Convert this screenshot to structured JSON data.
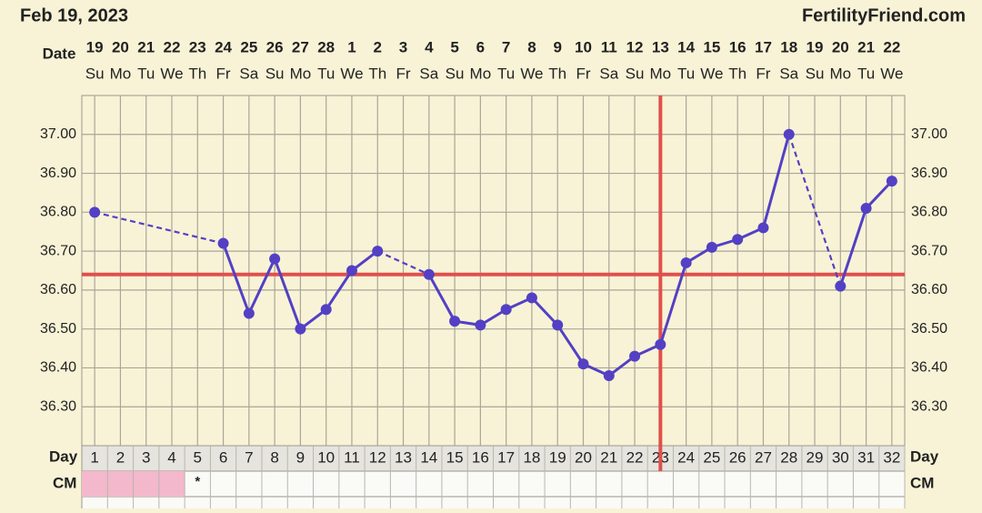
{
  "header": {
    "date": "Feb 19, 2023",
    "site": "FertilityFriend.com"
  },
  "chart_data": {
    "type": "line",
    "row_labels": {
      "date": "Date",
      "day": "Day",
      "cm": "CM"
    },
    "x": [
      1,
      2,
      3,
      4,
      5,
      6,
      7,
      8,
      9,
      10,
      11,
      12,
      13,
      14,
      15,
      16,
      17,
      18,
      19,
      20,
      21,
      22,
      23,
      24,
      25,
      26,
      27,
      28,
      29,
      30,
      31,
      32
    ],
    "dates": [
      19,
      20,
      21,
      22,
      23,
      24,
      25,
      26,
      27,
      28,
      1,
      2,
      3,
      4,
      5,
      6,
      7,
      8,
      9,
      10,
      11,
      12,
      13,
      14,
      15,
      16,
      17,
      18,
      19,
      20,
      21,
      22
    ],
    "weekdays": [
      "Su",
      "Mo",
      "Tu",
      "We",
      "Th",
      "Fr",
      "Sa",
      "Su",
      "Mo",
      "Tu",
      "We",
      "Th",
      "Fr",
      "Sa",
      "Su",
      "Mo",
      "Tu",
      "We",
      "Th",
      "Fr",
      "Sa",
      "Su",
      "Mo",
      "Tu",
      "We",
      "Th",
      "Fr",
      "Sa",
      "Su",
      "Mo",
      "Tu",
      "We"
    ],
    "xlim": [
      0.5,
      32.5
    ],
    "ylim": [
      36.2,
      37.1
    ],
    "yticks": [
      {
        "value": 36.3,
        "label": "36.30"
      },
      {
        "value": 36.4,
        "label": "36.40"
      },
      {
        "value": 36.5,
        "label": "36.50"
      },
      {
        "value": 36.6,
        "label": "36.60"
      },
      {
        "value": 36.7,
        "label": "36.70"
      },
      {
        "value": 36.8,
        "label": "36.80"
      },
      {
        "value": 36.9,
        "label": "36.90"
      },
      {
        "value": 37.0,
        "label": "37.00"
      }
    ],
    "grid": true,
    "series": [
      {
        "color": "#5340c4",
        "values": [
          36.8,
          null,
          null,
          null,
          null,
          36.72,
          36.54,
          36.68,
          36.5,
          36.55,
          36.65,
          36.7,
          null,
          36.64,
          36.52,
          36.51,
          36.55,
          36.58,
          36.51,
          36.41,
          36.38,
          36.43,
          36.46,
          36.67,
          36.71,
          36.73,
          36.76,
          37.0,
          null,
          36.61,
          36.81,
          36.88
        ]
      }
    ],
    "coverline": 36.64,
    "ovulation_day": 23,
    "marker_line_color": "#e0504c",
    "cm_highlight_days": [
      1,
      2,
      3,
      4
    ],
    "cm_highlight_color": "#f3b8cb",
    "cm_marks": [
      {
        "day": 5,
        "label": "*"
      }
    ]
  }
}
